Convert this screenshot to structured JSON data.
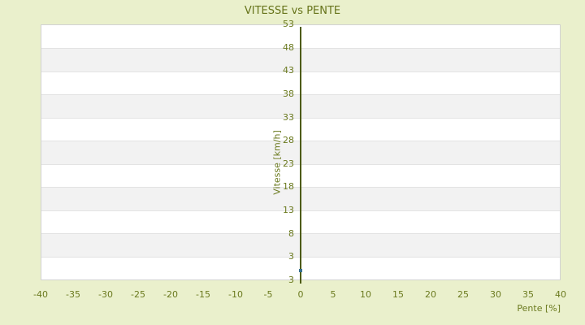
{
  "page": {
    "background": "#eaf0cc"
  },
  "chart_data": {
    "type": "scatter",
    "title": "VITESSE vs PENTE",
    "xlabel": "Pente [%]",
    "ylabel": "Vitesse [km/h]",
    "xlim": [
      -40,
      40
    ],
    "ylim": [
      -2,
      53
    ],
    "x_ticks": [
      -40,
      -35,
      -30,
      -25,
      -20,
      -15,
      -10,
      -5,
      0,
      5,
      10,
      15,
      20,
      25,
      30,
      35,
      40
    ],
    "y_ticks": [
      53,
      48,
      43,
      38,
      33,
      28,
      23,
      18,
      13,
      8,
      3
    ],
    "y_axis_min_label": "3",
    "points": [
      {
        "x": 0,
        "y": 0.1
      }
    ],
    "legend": "none",
    "grid": "alternating-horizontal-bands-every-5-units",
    "band_colors": [
      "#ffffff",
      "#f2f2f2"
    ],
    "gridline_color": "#e3e3e3",
    "plot_border_color": "#d2d2d2",
    "axis_line_color": "#4d5b10",
    "point_color": "#366f8f",
    "text_color": "#6b7a1f",
    "title_color": "#66731a"
  }
}
